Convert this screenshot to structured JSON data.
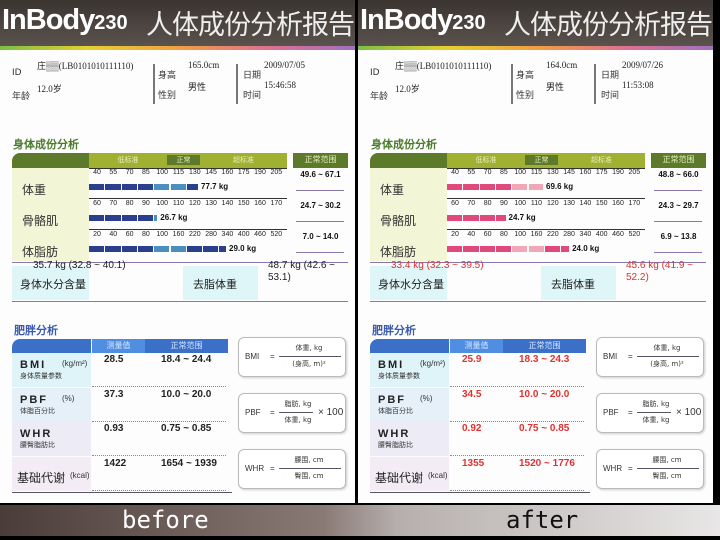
{
  "colors": {
    "before_bar": "#2b3f8f",
    "before_bar_normal": "#4a8fc0",
    "after_bar": "#e04a7a",
    "after_bar_normal": "#f0a8b8",
    "after_values": "#e03030",
    "before_values": "#222222"
  },
  "labels": {
    "brand": "InBody",
    "model": "230",
    "title": "人体成份分析报告",
    "id": "ID",
    "age": "年龄",
    "height": "身高",
    "sex": "性别",
    "date": "日期",
    "time": "时间",
    "composition_title": "身体成份分析",
    "band_low": "低标准",
    "band_normal": "正常",
    "band_high": "超标准",
    "normal_range": "正常范围",
    "weight": "体重",
    "muscle": "骨骼肌",
    "fat": "体脂肪",
    "water": "身体水分含量",
    "lean": "去脂体重",
    "obesity_title": "肥胖分析",
    "measured": "测量值",
    "bmi": "BMI",
    "bmi_unit": "(kg/m²)",
    "bmi_sub": "身体质量参数",
    "pbf": "PBF",
    "pbf_unit": "(%)",
    "pbf_sub": "体脂百分比",
    "whr": "WHR",
    "whr_sub": "腰臀脂肪比",
    "bmr": "基础代谢",
    "bmr_unit": "(kcal)",
    "f_bmi": "BMI",
    "f_bmi_num": "体重, kg",
    "f_bmi_den": "(身高, m)²",
    "f_pbf": "PBF",
    "f_pbf_num": "脂肪, kg",
    "f_pbf_den": "体重, kg",
    "f_pbf_mul": "× 100",
    "f_whr": "WHR",
    "f_whr_num": "腰围, cm",
    "f_whr_den": "臀围, cm",
    "eq": "="
  },
  "scales": {
    "weight": [
      "40",
      "55",
      "70",
      "85",
      "100",
      "115",
      "130",
      "145",
      "160",
      "175",
      "190",
      "205"
    ],
    "muscle": [
      "60",
      "70",
      "80",
      "90",
      "100",
      "110",
      "120",
      "130",
      "140",
      "150",
      "160",
      "170"
    ],
    "fat": [
      "20",
      "40",
      "60",
      "80",
      "100",
      "160",
      "220",
      "280",
      "340",
      "400",
      "460",
      "520"
    ]
  },
  "panels": [
    {
      "caption": "before",
      "name": "庄▒▒(LB0101010111110)",
      "age": "12.0岁",
      "height": "165.0cm",
      "sex": "男性",
      "date": "2009/07/05",
      "time": "15:46:58",
      "weight": {
        "value": "77.7 kg",
        "bar_scale_percent": 133,
        "range": "49.6 ~ 67.1"
      },
      "muscle": {
        "value": "26.7 kg",
        "bar_scale_percent": 97,
        "range": "24.7 ~ 30.2"
      },
      "fat": {
        "value": "29.0 kg",
        "bar_scale_percent": 335,
        "range": "7.0 ~ 14.0"
      },
      "water": "35.7 kg (32.8 ~ 40.1)",
      "lean": "48.7 kg (42.6 ~ 53.1)",
      "bmi": {
        "value": "28.5",
        "range": "18.4 ~ 24.4"
      },
      "pbf": {
        "value": "37.3",
        "range": "10.0 ~ 20.0"
      },
      "whr": {
        "value": "0.93",
        "range": "0.75 ~ 0.85"
      },
      "bmr": {
        "value": "1422",
        "range": "1654 ~ 1939"
      }
    },
    {
      "caption": "after",
      "name": "庄▒▒(LB0101010111110)",
      "age": "12.0岁",
      "height": "164.0cm",
      "sex": "男性",
      "date": "2009/07/26",
      "time": "11:53:08",
      "weight": {
        "value": "69.6 kg",
        "bar_scale_percent": 121,
        "range": "48.8 ~ 66.0"
      },
      "muscle": {
        "value": "24.7 kg",
        "bar_scale_percent": 91,
        "range": "24.3 ~ 29.7"
      },
      "fat": {
        "value": "24.0 kg",
        "bar_scale_percent": 280,
        "range": "6.9 ~ 13.8"
      },
      "water": "33.4 kg (32.3 ~ 39.5)",
      "lean": "45.6 kg (41.9 ~ 52.2)",
      "bmi": {
        "value": "25.9",
        "range": "18.3 ~ 24.3"
      },
      "pbf": {
        "value": "34.5",
        "range": "10.0 ~ 20.0"
      },
      "whr": {
        "value": "0.92",
        "range": "0.75 ~ 0.85"
      },
      "bmr": {
        "value": "1355",
        "range": "1520 ~ 1776"
      }
    }
  ]
}
